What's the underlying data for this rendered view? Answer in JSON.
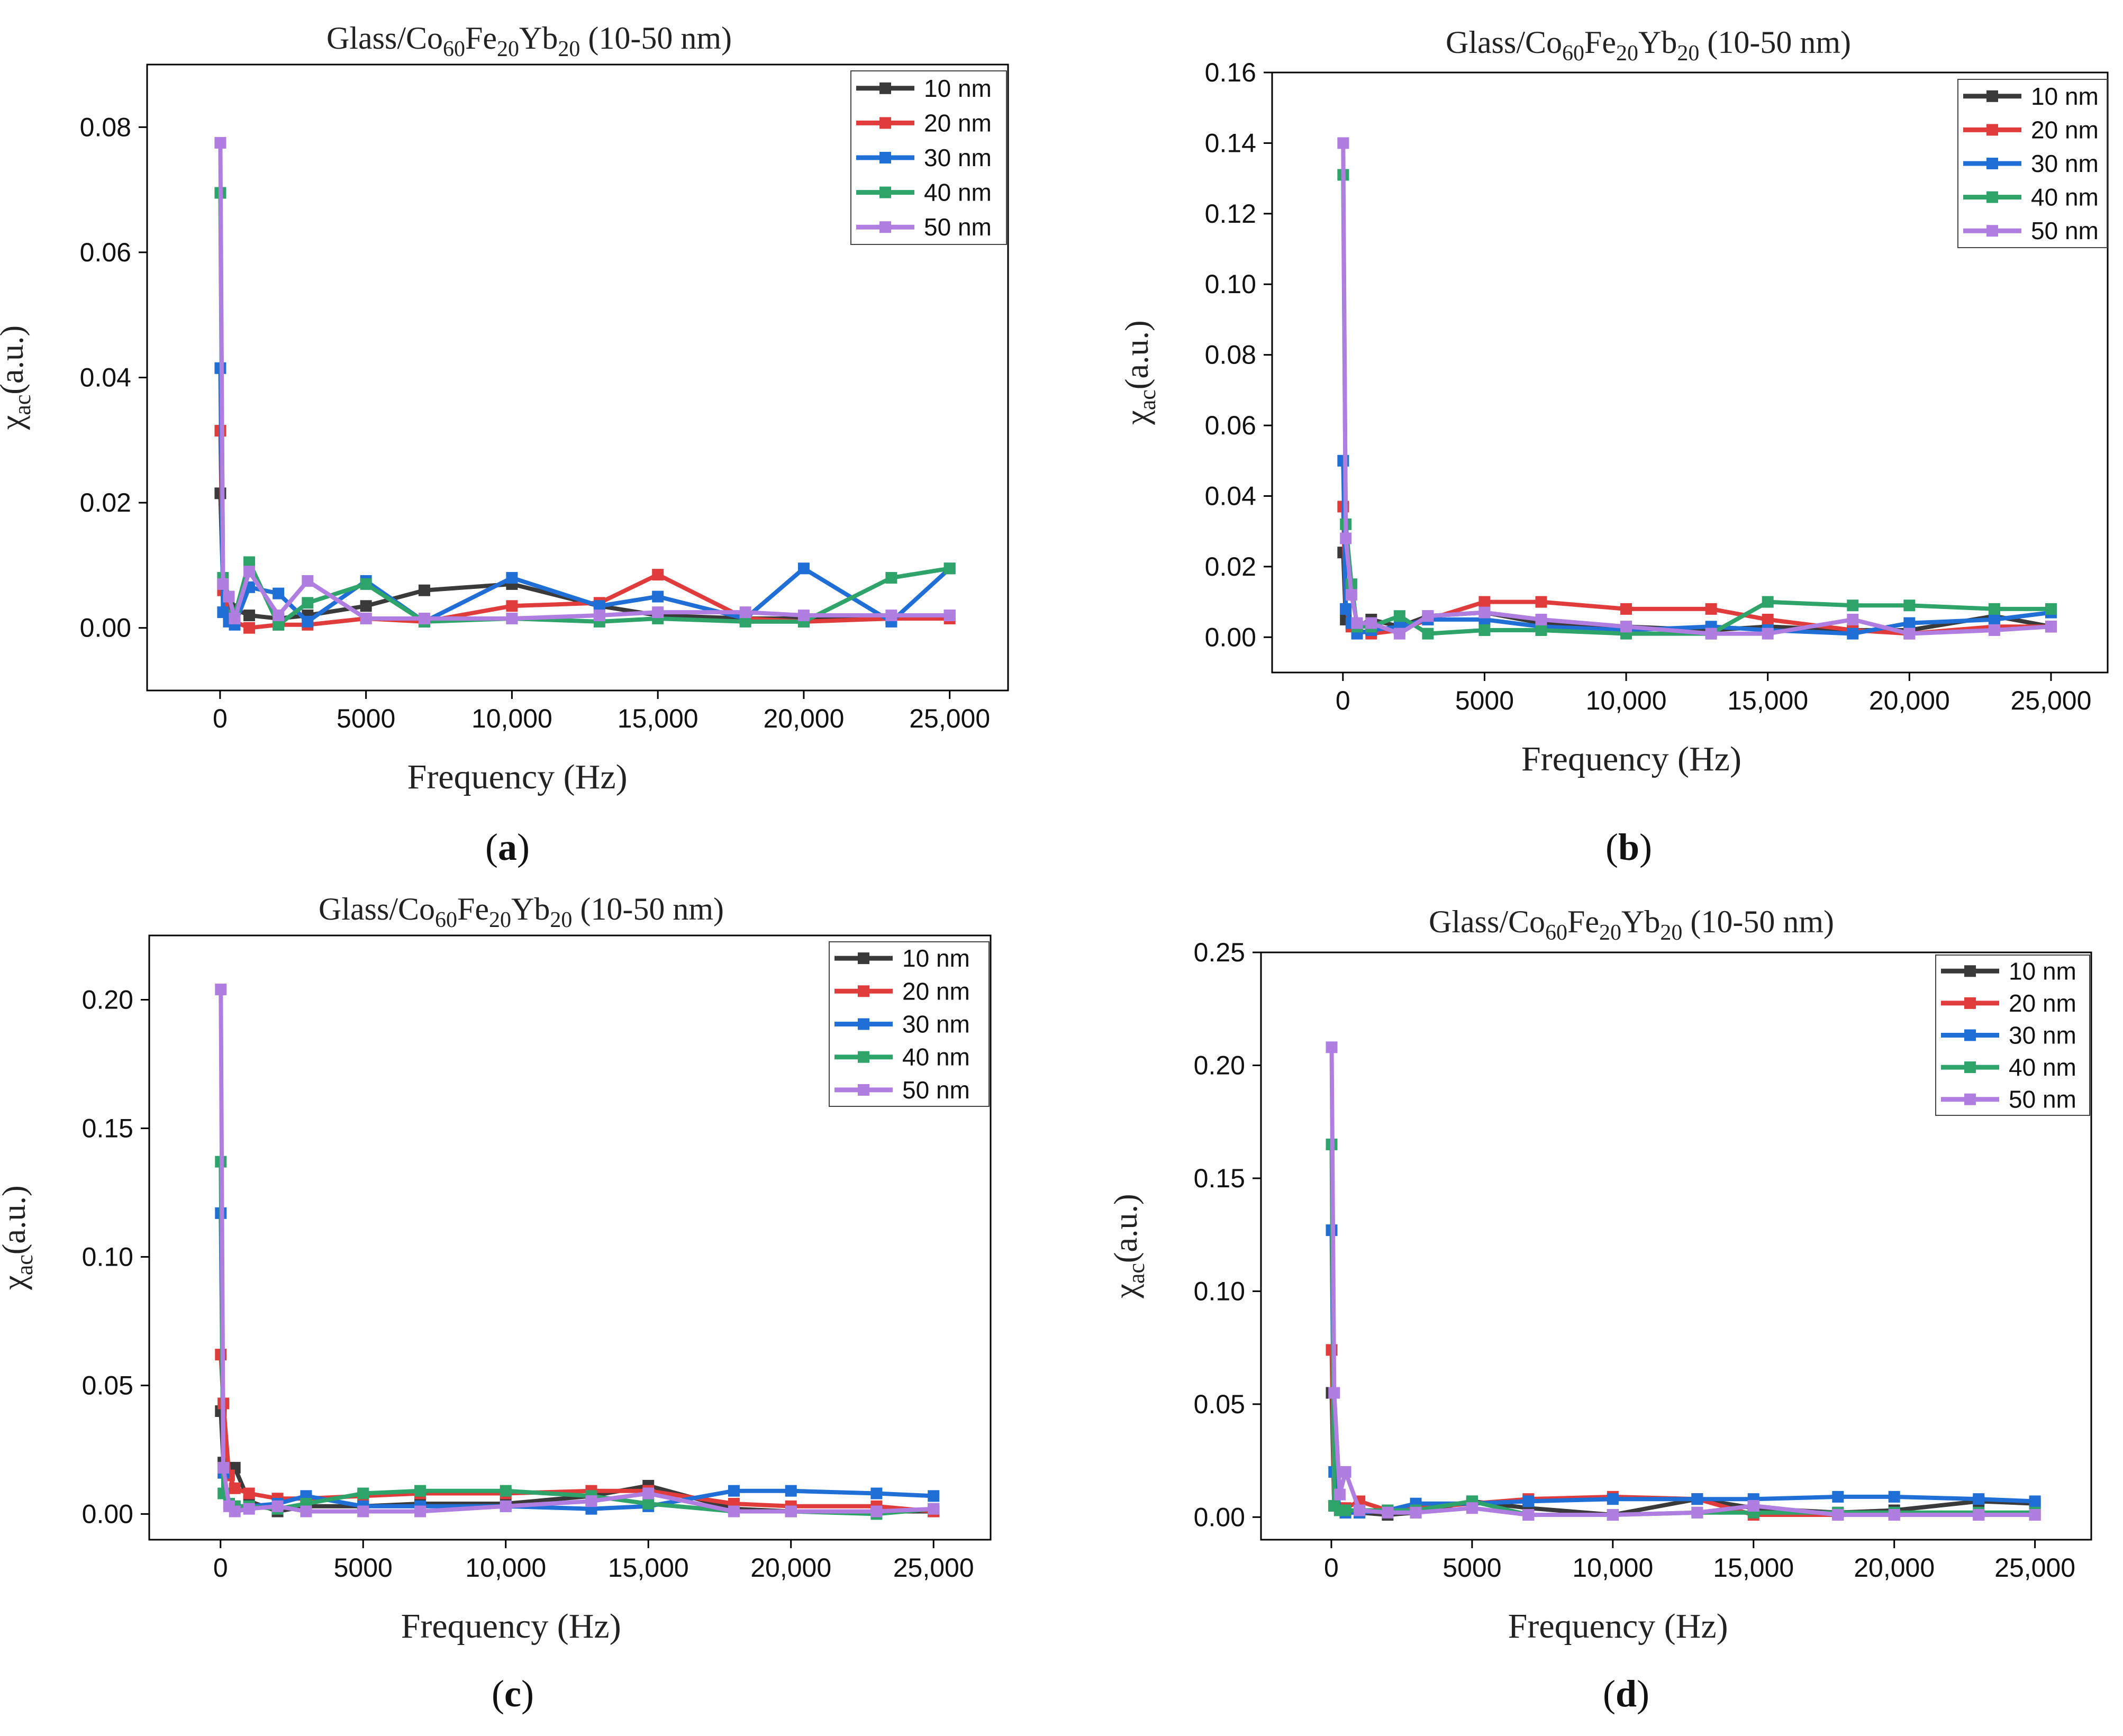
{
  "figure": {
    "colors": {
      "10 nm": "#3a3a3a",
      "20 nm": "#e03c3c",
      "30 nm": "#1f6fd6",
      "40 nm": "#2ea36a",
      "50 nm": "#b07ee0"
    }
  },
  "chart_data": [
    {
      "panel": "(a)",
      "type": "line",
      "title_parts": [
        "Glass/Co",
        "60",
        "Fe",
        "20",
        "Yb",
        "20",
        " (10-50 nm)"
      ],
      "xlabel": "Frequency (Hz)",
      "ylabel_parts": [
        "χ",
        "ac",
        "(a.u.)"
      ],
      "xlim": [
        -2500,
        27000
      ],
      "ylim": [
        -0.01,
        0.09
      ],
      "xticks": [
        0,
        5000,
        10000,
        15000,
        20000,
        25000
      ],
      "xtick_labels": [
        "0",
        "5000",
        "10,000",
        "15,000",
        "20,000",
        "25,000"
      ],
      "yticks": [
        0.0,
        0.02,
        0.04,
        0.06,
        0.08
      ],
      "ytick_labels": [
        "0.00",
        "0.02",
        "0.04",
        "0.06",
        "0.08"
      ],
      "legend": "top-right",
      "series": [
        {
          "name": "10 nm",
          "x": [
            10,
            100,
            300,
            500,
            1000,
            2000,
            3000,
            5000,
            7000,
            10000,
            13000,
            15000,
            18000,
            20000,
            23000,
            25000
          ],
          "y": [
            0.0215,
            0.007,
            0.004,
            0.003,
            0.002,
            0.0015,
            0.002,
            0.0035,
            0.006,
            0.007,
            0.0035,
            0.002,
            0.0015,
            0.0015,
            0.0015,
            0.002
          ]
        },
        {
          "name": "20 nm",
          "x": [
            10,
            100,
            300,
            500,
            1000,
            2000,
            3000,
            5000,
            7000,
            10000,
            13000,
            15000,
            18000,
            20000,
            23000,
            25000
          ],
          "y": [
            0.0315,
            0.006,
            0.002,
            0.001,
            0.0,
            0.0005,
            0.0005,
            0.0015,
            0.001,
            0.0035,
            0.004,
            0.0085,
            0.0015,
            0.001,
            0.0015,
            0.0015
          ]
        },
        {
          "name": "30 nm",
          "x": [
            10,
            100,
            300,
            500,
            1000,
            2000,
            3000,
            5000,
            7000,
            10000,
            13000,
            15000,
            18000,
            20000,
            23000,
            25000
          ],
          "y": [
            0.0415,
            0.0025,
            0.001,
            0.0005,
            0.0065,
            0.0055,
            0.001,
            0.0075,
            0.001,
            0.008,
            0.0035,
            0.005,
            0.0015,
            0.0095,
            0.001,
            0.0095
          ]
        },
        {
          "name": "40 nm",
          "x": [
            10,
            100,
            300,
            500,
            1000,
            2000,
            3000,
            5000,
            7000,
            10000,
            13000,
            15000,
            18000,
            20000,
            23000,
            25000
          ],
          "y": [
            0.0695,
            0.008,
            0.005,
            0.002,
            0.0105,
            0.0005,
            0.004,
            0.007,
            0.001,
            0.0015,
            0.001,
            0.0015,
            0.001,
            0.001,
            0.008,
            0.0095
          ]
        },
        {
          "name": "50 nm",
          "x": [
            10,
            100,
            300,
            500,
            1000,
            2000,
            3000,
            5000,
            7000,
            10000,
            13000,
            15000,
            18000,
            20000,
            23000,
            25000
          ],
          "y": [
            0.0775,
            0.007,
            0.005,
            0.0015,
            0.009,
            0.002,
            0.0075,
            0.0015,
            0.0015,
            0.0015,
            0.002,
            0.0025,
            0.0025,
            0.002,
            0.002,
            0.002
          ]
        }
      ]
    },
    {
      "panel": "(b)",
      "type": "line",
      "title_parts": [
        "Glass/Co",
        "60",
        "Fe",
        "20",
        "Yb",
        "20",
        " (10-50 nm)"
      ],
      "xlabel": "Frequency (Hz)",
      "ylabel_parts": [
        "χ",
        "ac",
        "(a.u.)"
      ],
      "xlim": [
        -2500,
        27000
      ],
      "ylim": [
        -0.01,
        0.16
      ],
      "xticks": [
        0,
        5000,
        10000,
        15000,
        20000,
        25000
      ],
      "xtick_labels": [
        "0",
        "5000",
        "10,000",
        "15,000",
        "20,000",
        "25,000"
      ],
      "yticks": [
        0.0,
        0.02,
        0.04,
        0.06,
        0.08,
        0.1,
        0.12,
        0.14,
        0.16
      ],
      "ytick_labels": [
        "0.00",
        "0.02",
        "0.04",
        "0.06",
        "0.08",
        "0.10",
        "0.12",
        "0.14",
        "0.16"
      ],
      "legend": "top-right",
      "series": [
        {
          "name": "10 nm",
          "x": [
            10,
            100,
            300,
            500,
            1000,
            2000,
            3000,
            5000,
            7000,
            10000,
            13000,
            15000,
            18000,
            20000,
            23000,
            25000
          ],
          "y": [
            0.024,
            0.005,
            0.004,
            0.003,
            0.005,
            0.003,
            0.006,
            0.007,
            0.004,
            0.003,
            0.002,
            0.003,
            0.002,
            0.002,
            0.006,
            0.003
          ]
        },
        {
          "name": "20 nm",
          "x": [
            10,
            100,
            300,
            500,
            1000,
            2000,
            3000,
            5000,
            7000,
            10000,
            13000,
            15000,
            18000,
            20000,
            23000,
            25000
          ],
          "y": [
            0.037,
            0.008,
            0.003,
            0.002,
            0.001,
            0.002,
            0.005,
            0.01,
            0.01,
            0.008,
            0.008,
            0.005,
            0.002,
            0.001,
            0.003,
            0.003
          ]
        },
        {
          "name": "30 nm",
          "x": [
            10,
            100,
            300,
            500,
            1000,
            2000,
            3000,
            5000,
            7000,
            10000,
            13000,
            15000,
            18000,
            20000,
            23000,
            25000
          ],
          "y": [
            0.05,
            0.008,
            0.004,
            0.001,
            0.002,
            0.003,
            0.005,
            0.005,
            0.003,
            0.002,
            0.003,
            0.002,
            0.001,
            0.004,
            0.005,
            0.007
          ]
        },
        {
          "name": "40 nm",
          "x": [
            10,
            100,
            300,
            500,
            1000,
            2000,
            3000,
            5000,
            7000,
            10000,
            13000,
            15000,
            18000,
            20000,
            23000,
            25000
          ],
          "y": [
            0.131,
            0.032,
            0.015,
            0.003,
            0.003,
            0.006,
            0.001,
            0.002,
            0.002,
            0.001,
            0.001,
            0.01,
            0.009,
            0.009,
            0.008,
            0.008
          ]
        },
        {
          "name": "50 nm",
          "x": [
            10,
            100,
            300,
            500,
            1000,
            2000,
            3000,
            5000,
            7000,
            10000,
            13000,
            15000,
            18000,
            20000,
            23000,
            25000
          ],
          "y": [
            0.14,
            0.028,
            0.012,
            0.004,
            0.004,
            0.001,
            0.006,
            0.007,
            0.005,
            0.003,
            0.001,
            0.001,
            0.005,
            0.001,
            0.002,
            0.003
          ]
        }
      ]
    },
    {
      "panel": "(c)",
      "type": "line",
      "title_parts": [
        "Glass/Co",
        "60",
        "Fe",
        "20",
        "Yb",
        "20",
        " (10-50 nm)"
      ],
      "xlabel": "Frequency (Hz)",
      "ylabel_parts": [
        "χ",
        "ac",
        "(a.u.)"
      ],
      "xlim": [
        -2500,
        27000
      ],
      "ylim": [
        -0.01,
        0.225
      ],
      "xticks": [
        0,
        5000,
        10000,
        15000,
        20000,
        25000
      ],
      "xtick_labels": [
        "0",
        "5000",
        "10,000",
        "15,000",
        "20,000",
        "25,000"
      ],
      "yticks": [
        0.0,
        0.05,
        0.1,
        0.15,
        0.2
      ],
      "ytick_labels": [
        "0.00",
        "0.05",
        "0.10",
        "0.15",
        "0.20"
      ],
      "legend": "top-right",
      "series": [
        {
          "name": "10 nm",
          "x": [
            10,
            100,
            300,
            500,
            1000,
            2000,
            3000,
            5000,
            7000,
            10000,
            13000,
            15000,
            18000,
            20000,
            23000,
            25000
          ],
          "y": [
            0.04,
            0.02,
            0.018,
            0.018,
            0.005,
            0.001,
            0.003,
            0.003,
            0.004,
            0.004,
            0.007,
            0.011,
            0.002,
            0.001,
            0.001,
            0.001
          ]
        },
        {
          "name": "20 nm",
          "x": [
            10,
            100,
            300,
            500,
            1000,
            2000,
            3000,
            5000,
            7000,
            10000,
            13000,
            15000,
            18000,
            20000,
            23000,
            25000
          ],
          "y": [
            0.062,
            0.043,
            0.015,
            0.01,
            0.008,
            0.006,
            0.006,
            0.007,
            0.008,
            0.008,
            0.009,
            0.009,
            0.004,
            0.003,
            0.003,
            0.001
          ]
        },
        {
          "name": "30 nm",
          "x": [
            10,
            100,
            300,
            500,
            1000,
            2000,
            3000,
            5000,
            7000,
            10000,
            13000,
            15000,
            18000,
            20000,
            23000,
            25000
          ],
          "y": [
            0.117,
            0.016,
            0.004,
            0.003,
            0.003,
            0.004,
            0.007,
            0.003,
            0.003,
            0.003,
            0.002,
            0.003,
            0.009,
            0.009,
            0.008,
            0.007
          ]
        },
        {
          "name": "40 nm",
          "x": [
            10,
            100,
            300,
            500,
            1000,
            2000,
            3000,
            5000,
            7000,
            10000,
            13000,
            15000,
            18000,
            20000,
            23000,
            25000
          ],
          "y": [
            0.137,
            0.008,
            0.004,
            0.003,
            0.003,
            0.002,
            0.004,
            0.008,
            0.009,
            0.009,
            0.007,
            0.004,
            0.001,
            0.001,
            0.0,
            0.002
          ]
        },
        {
          "name": "50 nm",
          "x": [
            10,
            100,
            300,
            500,
            1000,
            2000,
            3000,
            5000,
            7000,
            10000,
            13000,
            15000,
            18000,
            20000,
            23000,
            25000
          ],
          "y": [
            0.204,
            0.018,
            0.003,
            0.001,
            0.002,
            0.003,
            0.001,
            0.001,
            0.001,
            0.003,
            0.005,
            0.008,
            0.001,
            0.001,
            0.001,
            0.002
          ]
        }
      ]
    },
    {
      "panel": "(d)",
      "type": "line",
      "title_parts": [
        "Glass/Co",
        "60",
        "Fe",
        "20",
        "Yb",
        "20",
        " (10-50 nm)"
      ],
      "xlabel": "Frequency (Hz)",
      "ylabel_parts": [
        "χ",
        "ac",
        "(a.u.)"
      ],
      "xlim": [
        -2500,
        27000
      ],
      "ylim": [
        -0.01,
        0.25
      ],
      "xticks": [
        0,
        5000,
        10000,
        15000,
        20000,
        25000
      ],
      "xtick_labels": [
        "0",
        "5000",
        "10,000",
        "15,000",
        "20,000",
        "25,000"
      ],
      "yticks": [
        0.0,
        0.05,
        0.1,
        0.15,
        0.2,
        0.25
      ],
      "ytick_labels": [
        "0.00",
        "0.05",
        "0.10",
        "0.15",
        "0.20",
        "0.25"
      ],
      "legend": "top-right",
      "series": [
        {
          "name": "10 nm",
          "x": [
            10,
            100,
            300,
            500,
            1000,
            2000,
            3000,
            5000,
            7000,
            10000,
            13000,
            15000,
            18000,
            20000,
            23000,
            25000
          ],
          "y": [
            0.055,
            0.005,
            0.003,
            0.002,
            0.002,
            0.001,
            0.002,
            0.007,
            0.004,
            0.001,
            0.008,
            0.004,
            0.002,
            0.003,
            0.007,
            0.006
          ]
        },
        {
          "name": "20 nm",
          "x": [
            10,
            100,
            300,
            500,
            1000,
            2000,
            3000,
            5000,
            7000,
            10000,
            13000,
            15000,
            18000,
            20000,
            23000,
            25000
          ],
          "y": [
            0.074,
            0.005,
            0.004,
            0.004,
            0.007,
            0.003,
            0.004,
            0.006,
            0.008,
            0.009,
            0.008,
            0.001,
            0.001,
            0.001,
            0.001,
            0.001
          ]
        },
        {
          "name": "30 nm",
          "x": [
            10,
            100,
            300,
            500,
            1000,
            2000,
            3000,
            5000,
            7000,
            10000,
            13000,
            15000,
            18000,
            20000,
            23000,
            25000
          ],
          "y": [
            0.127,
            0.02,
            0.003,
            0.002,
            0.002,
            0.003,
            0.006,
            0.006,
            0.007,
            0.008,
            0.008,
            0.008,
            0.009,
            0.009,
            0.008,
            0.007
          ]
        },
        {
          "name": "40 nm",
          "x": [
            10,
            100,
            300,
            500,
            1000,
            2000,
            3000,
            5000,
            7000,
            10000,
            13000,
            15000,
            18000,
            20000,
            23000,
            25000
          ],
          "y": [
            0.165,
            0.005,
            0.003,
            0.003,
            0.003,
            0.003,
            0.003,
            0.007,
            0.001,
            0.001,
            0.002,
            0.002,
            0.002,
            0.002,
            0.002,
            0.002
          ]
        },
        {
          "name": "50 nm",
          "x": [
            10,
            100,
            300,
            500,
            1000,
            2000,
            3000,
            5000,
            7000,
            10000,
            13000,
            15000,
            18000,
            20000,
            23000,
            25000
          ],
          "y": [
            0.208,
            0.055,
            0.01,
            0.02,
            0.003,
            0.002,
            0.002,
            0.004,
            0.001,
            0.001,
            0.002,
            0.005,
            0.001,
            0.001,
            0.001,
            0.001
          ]
        }
      ]
    }
  ]
}
